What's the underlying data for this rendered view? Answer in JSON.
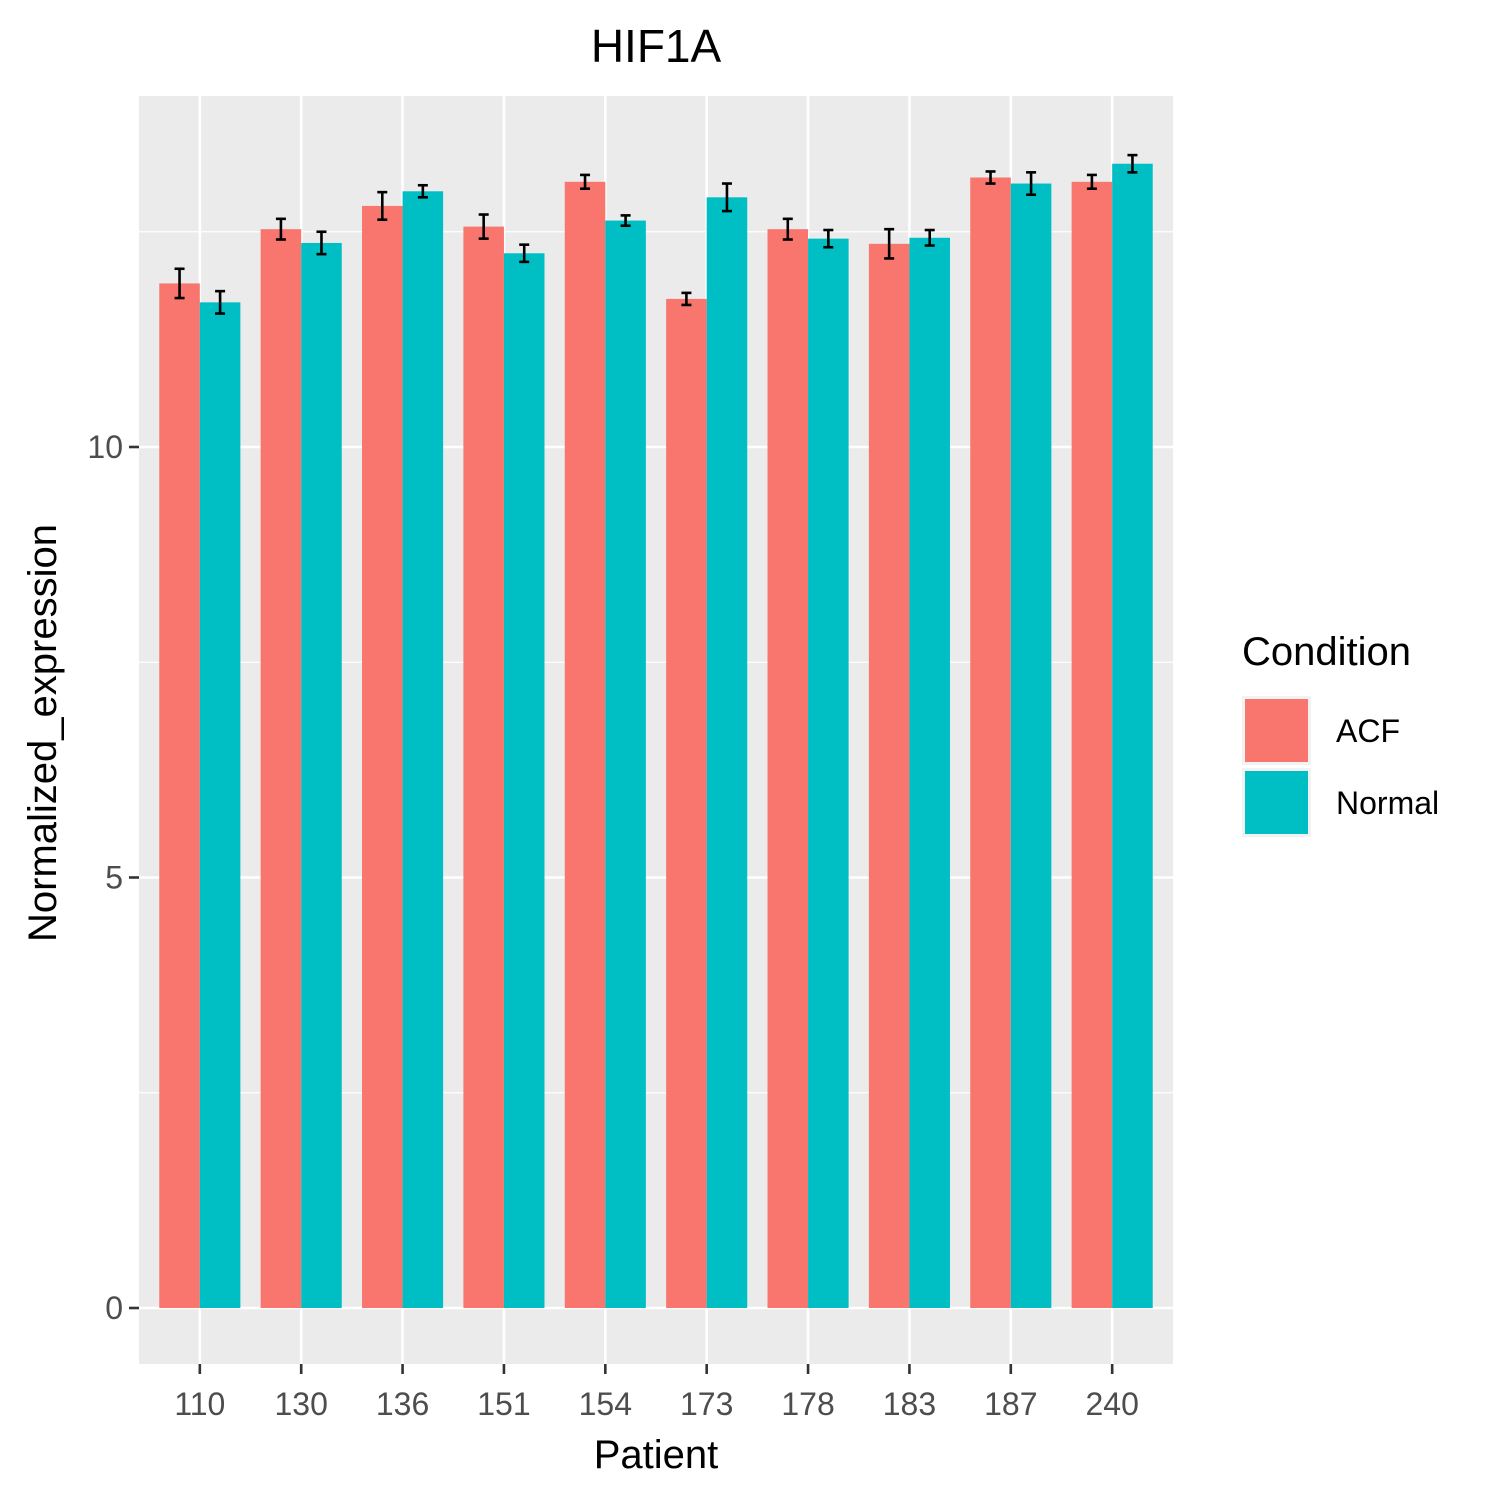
{
  "chart_data": {
    "type": "bar",
    "title": "HIF1A",
    "xlabel": "Patient",
    "ylabel": "Normalized_expression",
    "categories": [
      "110",
      "130",
      "136",
      "151",
      "154",
      "173",
      "178",
      "183",
      "187",
      "240"
    ],
    "series": [
      {
        "name": "ACF",
        "color": "#F8766D",
        "values": [
          11.9,
          12.53,
          12.8,
          12.56,
          13.08,
          11.72,
          12.53,
          12.36,
          13.13,
          13.08
        ],
        "error": [
          0.17,
          0.12,
          0.16,
          0.14,
          0.08,
          0.07,
          0.12,
          0.17,
          0.07,
          0.08
        ]
      },
      {
        "name": "Normal",
        "color": "#00BFC4",
        "values": [
          11.68,
          12.37,
          12.97,
          12.25,
          12.63,
          12.9,
          12.42,
          12.43,
          13.06,
          13.29
        ],
        "error": [
          0.13,
          0.13,
          0.07,
          0.1,
          0.06,
          0.16,
          0.1,
          0.09,
          0.13,
          0.1
        ]
      }
    ],
    "yticks": [
      0,
      5,
      10
    ],
    "ylim": [
      -0.65,
      13.98
    ],
    "grid": true,
    "legend": {
      "title": "Condition",
      "position": "right"
    }
  }
}
